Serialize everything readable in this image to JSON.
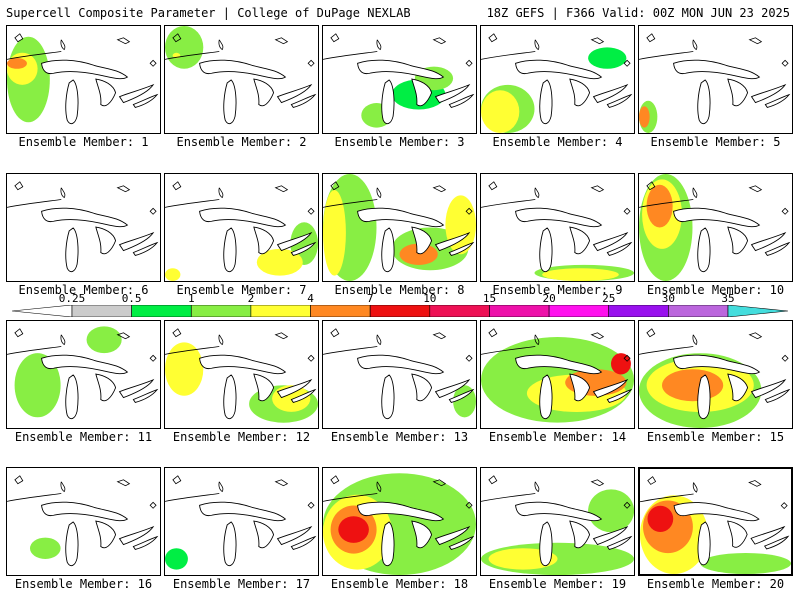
{
  "header": {
    "left": "Supercell Composite Parameter | College of DuPage NEXLAB",
    "right": "18Z GEFS | F366 Valid: 00Z MON JUN 23 2025"
  },
  "legend": {
    "ticks": [
      "0.25",
      "0.5",
      "1",
      "2",
      "4",
      "7",
      "10",
      "15",
      "20",
      "25",
      "30",
      "35"
    ],
    "colors": [
      "#cccccc",
      "#00ee44",
      "#88ee44",
      "#ffff33",
      "#ff8822",
      "#ee1111",
      "#ee1155",
      "#ee11aa",
      "#ff11ee",
      "#9911ee",
      "#bb66dd",
      "#44dddd"
    ]
  },
  "members": [
    {
      "label": "Ensemble Member: 1",
      "blobs": [
        [
          0.0,
          0.1,
          0.28,
          0.9,
          1
        ],
        [
          0.0,
          0.25,
          0.2,
          0.55,
          2
        ],
        [
          0.0,
          0.3,
          0.13,
          0.4,
          4
        ]
      ]
    },
    {
      "label": "Ensemble Member: 2",
      "blobs": [
        [
          0.0,
          0.0,
          0.25,
          0.4,
          1
        ],
        [
          0.05,
          0.25,
          0.1,
          0.3,
          2
        ]
      ]
    },
    {
      "label": "Ensemble Member: 3",
      "blobs": [
        [
          0.45,
          0.5,
          0.8,
          0.78,
          0.5
        ],
        [
          0.6,
          0.38,
          0.85,
          0.6,
          1
        ],
        [
          0.25,
          0.72,
          0.45,
          0.95,
          1
        ]
      ]
    },
    {
      "label": "Ensemble Member: 4",
      "blobs": [
        [
          0.0,
          0.55,
          0.35,
          1.0,
          1
        ],
        [
          0.0,
          0.6,
          0.25,
          1.0,
          2
        ],
        [
          0.7,
          0.2,
          0.95,
          0.4,
          0.5
        ]
      ]
    },
    {
      "label": "Ensemble Member: 5",
      "blobs": [
        [
          0.0,
          0.7,
          0.12,
          1.0,
          1
        ],
        [
          0.0,
          0.75,
          0.07,
          0.95,
          4
        ]
      ]
    },
    {
      "label": "Ensemble Member: 6",
      "blobs": []
    },
    {
      "label": "Ensemble Member: 7",
      "blobs": [
        [
          0.82,
          0.45,
          1.0,
          0.85,
          1
        ],
        [
          0.6,
          0.7,
          0.9,
          0.95,
          2
        ],
        [
          0.0,
          0.88,
          0.1,
          1.0,
          2
        ]
      ]
    },
    {
      "label": "Ensemble Member: 8",
      "blobs": [
        [
          0.0,
          0.0,
          0.35,
          1.0,
          1
        ],
        [
          0.0,
          0.15,
          0.15,
          0.95,
          2
        ],
        [
          0.45,
          0.5,
          0.95,
          0.9,
          1
        ],
        [
          0.8,
          0.2,
          1.0,
          0.75,
          2
        ],
        [
          0.5,
          0.65,
          0.75,
          0.85,
          4
        ]
      ]
    },
    {
      "label": "Ensemble Member: 9",
      "blobs": [
        [
          0.35,
          0.85,
          1.0,
          1.0,
          1
        ],
        [
          0.4,
          0.88,
          0.9,
          1.0,
          2
        ]
      ]
    },
    {
      "label": "Ensemble Member: 10",
      "blobs": [
        [
          0.0,
          0.0,
          0.35,
          1.0,
          1
        ],
        [
          0.02,
          0.05,
          0.28,
          0.7,
          2
        ],
        [
          0.05,
          0.1,
          0.22,
          0.5,
          4
        ]
      ]
    },
    {
      "label": "Ensemble Member: 11",
      "blobs": [
        [
          0.05,
          0.3,
          0.35,
          0.9,
          1
        ],
        [
          0.52,
          0.05,
          0.75,
          0.3,
          1
        ]
      ]
    },
    {
      "label": "Ensemble Member: 12",
      "blobs": [
        [
          0.0,
          0.2,
          0.25,
          0.7,
          2
        ],
        [
          0.55,
          0.6,
          1.0,
          0.95,
          1
        ],
        [
          0.7,
          0.6,
          0.95,
          0.85,
          2
        ]
      ]
    },
    {
      "label": "Ensemble Member: 13",
      "blobs": [
        [
          0.85,
          0.6,
          1.0,
          0.9,
          1
        ]
      ]
    },
    {
      "label": "Ensemble Member: 14",
      "blobs": [
        [
          0.0,
          0.15,
          1.0,
          0.95,
          1
        ],
        [
          0.3,
          0.5,
          0.95,
          0.85,
          2
        ],
        [
          0.55,
          0.45,
          0.95,
          0.7,
          4
        ],
        [
          0.85,
          0.3,
          0.98,
          0.5,
          7
        ]
      ]
    },
    {
      "label": "Ensemble Member: 15",
      "blobs": [
        [
          0.0,
          0.3,
          0.8,
          1.0,
          1
        ],
        [
          0.05,
          0.35,
          0.75,
          0.85,
          2
        ],
        [
          0.15,
          0.45,
          0.55,
          0.75,
          4
        ]
      ]
    },
    {
      "label": "Ensemble Member: 16",
      "blobs": [
        [
          0.15,
          0.65,
          0.35,
          0.85,
          1
        ]
      ]
    },
    {
      "label": "Ensemble Member: 17",
      "blobs": [
        [
          0.0,
          0.75,
          0.15,
          0.95,
          0.5
        ]
      ]
    },
    {
      "label": "Ensemble Member: 18",
      "blobs": [
        [
          0.0,
          0.05,
          1.0,
          1.0,
          1
        ],
        [
          0.0,
          0.25,
          0.45,
          0.95,
          2
        ],
        [
          0.05,
          0.35,
          0.35,
          0.8,
          4
        ],
        [
          0.1,
          0.45,
          0.3,
          0.7,
          7
        ]
      ]
    },
    {
      "label": "Ensemble Member: 19",
      "blobs": [
        [
          0.0,
          0.7,
          1.0,
          1.0,
          1
        ],
        [
          0.05,
          0.75,
          0.5,
          0.95,
          2
        ],
        [
          0.7,
          0.2,
          1.0,
          0.6,
          1
        ]
      ]
    },
    {
      "label": "Ensemble Member: 20",
      "blobs": [
        [
          0.0,
          0.25,
          0.45,
          1.0,
          2
        ],
        [
          0.02,
          0.3,
          0.35,
          0.8,
          4
        ],
        [
          0.05,
          0.35,
          0.22,
          0.6,
          7
        ],
        [
          0.4,
          0.8,
          1.0,
          1.0,
          1
        ]
      ]
    }
  ]
}
